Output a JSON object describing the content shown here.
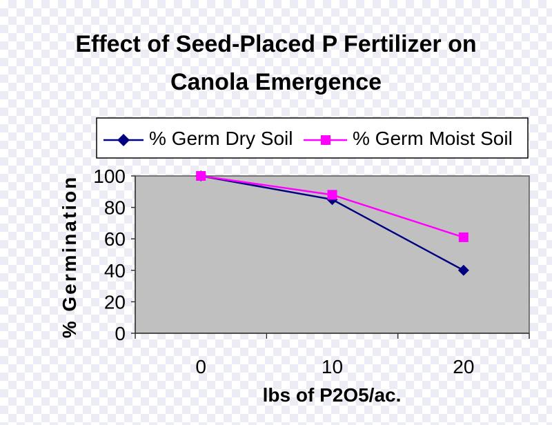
{
  "chart_data": {
    "type": "line",
    "title_lines": [
      "Effect of Seed-Placed P Fertilizer on",
      "Canola Emergence"
    ],
    "xlabel": "lbs of P2O5/ac.",
    "ylabel": "% Germination",
    "categories": [
      "0",
      "10",
      "20"
    ],
    "ylim": [
      0,
      100
    ],
    "yticks": [
      0,
      20,
      40,
      60,
      80,
      100
    ],
    "grid": false,
    "legend_position": "top",
    "plot_background": "#c0c0c0",
    "series": [
      {
        "name": "% Germ Dry Soil",
        "values": [
          100,
          85,
          40
        ],
        "color": "#000080",
        "marker": "diamond"
      },
      {
        "name": "% Germ Moist Soil",
        "values": [
          100,
          88,
          61
        ],
        "color": "#ff00ff",
        "marker": "square"
      }
    ]
  }
}
